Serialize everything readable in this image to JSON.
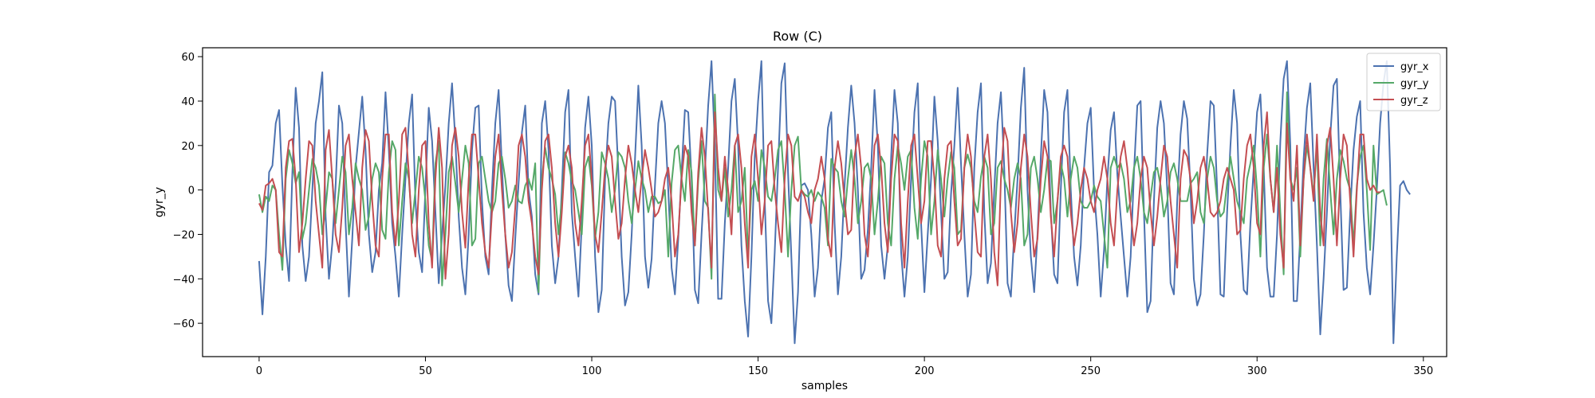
{
  "chart_data": {
    "type": "line",
    "title": "Row (C)",
    "xlabel": "samples",
    "ylabel": "gyr_y",
    "xlim": [
      -17,
      357
    ],
    "ylim": [
      -75,
      64
    ],
    "x_ticks": [
      0,
      50,
      100,
      150,
      200,
      250,
      300,
      350
    ],
    "y_ticks": [
      -60,
      -40,
      -20,
      0,
      20,
      40,
      60
    ],
    "grid": false,
    "legend_position": "top-right",
    "series": [
      {
        "name": "gyr_x",
        "color": "#4c72b0",
        "values": [
          -32,
          -56,
          -30,
          8,
          11,
          30,
          36,
          2,
          -25,
          -41,
          8,
          46,
          28,
          -25,
          -41,
          -30,
          0,
          30,
          40,
          53,
          -12,
          -40,
          -24,
          2,
          38,
          30,
          -15,
          -48,
          -22,
          10,
          26,
          42,
          18,
          -20,
          -37,
          -28,
          0,
          12,
          44,
          18,
          -15,
          -30,
          -48,
          -20,
          5,
          30,
          43,
          -5,
          -28,
          -37,
          1,
          37,
          22,
          -10,
          -42,
          -20,
          2,
          30,
          48,
          22,
          -12,
          -35,
          -47,
          -20,
          18,
          37,
          38,
          -5,
          -30,
          -38,
          0,
          30,
          45,
          10,
          -20,
          -43,
          -50,
          -22,
          3,
          26,
          38,
          0,
          -12,
          -38,
          -47,
          30,
          40,
          18,
          -25,
          -42,
          -30,
          0,
          35,
          45,
          -10,
          -30,
          -48,
          -15,
          28,
          42,
          20,
          -30,
          -55,
          -45,
          5,
          30,
          42,
          40,
          8,
          -30,
          -52,
          -46,
          -20,
          14,
          47,
          20,
          -30,
          -44,
          -31,
          2,
          30,
          40,
          30,
          0,
          -35,
          -47,
          -22,
          8,
          36,
          35,
          5,
          -45,
          -51,
          -20,
          8,
          38,
          58,
          20,
          -49,
          -49,
          -15,
          10,
          40,
          50,
          20,
          -25,
          -50,
          -66,
          -30,
          15,
          40,
          58,
          -5,
          -50,
          -60,
          -28,
          10,
          48,
          57,
          8,
          -30,
          -69,
          -46,
          2,
          3,
          0,
          -20,
          -48,
          -35,
          -5,
          5,
          28,
          35,
          -15,
          -47,
          -30,
          2,
          28,
          47,
          30,
          0,
          -40,
          -36,
          -18,
          10,
          45,
          20,
          -25,
          -40,
          -25,
          15,
          45,
          30,
          -28,
          -48,
          -30,
          5,
          35,
          48,
          -15,
          -46,
          -20,
          5,
          42,
          22,
          -10,
          -40,
          -37,
          -2,
          20,
          46,
          12,
          -20,
          -48,
          -38,
          10,
          35,
          48,
          -10,
          -42,
          -33,
          0,
          30,
          44,
          10,
          -42,
          -48,
          -20,
          5,
          37,
          55,
          0,
          -30,
          -46,
          -20,
          15,
          45,
          35,
          -10,
          -38,
          -42,
          0,
          35,
          45,
          0,
          -30,
          -43,
          -25,
          10,
          30,
          37,
          0,
          -20,
          -48,
          -27,
          5,
          27,
          35,
          7,
          -12,
          -30,
          -48,
          -30,
          8,
          38,
          40,
          -10,
          -55,
          -50,
          -5,
          28,
          40,
          30,
          0,
          -42,
          -47,
          -5,
          25,
          40,
          32,
          0,
          -40,
          -52,
          -47,
          -20,
          16,
          40,
          38,
          0,
          -47,
          -48,
          -10,
          20,
          45,
          30,
          -20,
          -45,
          -47,
          -15,
          10,
          35,
          43,
          10,
          -35,
          -48,
          -48,
          -20,
          22,
          50,
          58,
          20,
          -50,
          -50,
          -20,
          14,
          37,
          48,
          10,
          -25,
          -65,
          -40,
          -10,
          24,
          47,
          50,
          0,
          -45,
          -44,
          -10,
          18,
          33,
          40,
          -10,
          -35,
          -47,
          -25,
          0,
          30,
          48,
          58,
          10,
          -69,
          -30,
          2,
          4,
          0,
          -2
        ]
      },
      {
        "name": "gyr_y",
        "color": "#55a868",
        "values": [
          -2,
          -10,
          -3,
          -5,
          2,
          0,
          -20,
          -36,
          5,
          18,
          12,
          3,
          8,
          -22,
          -15,
          0,
          14,
          10,
          2,
          -20,
          -8,
          8,
          5,
          -15,
          0,
          15,
          8,
          -20,
          -8,
          12,
          5,
          0,
          -18,
          -12,
          5,
          12,
          8,
          -18,
          -22,
          8,
          22,
          18,
          -25,
          -5,
          12,
          5,
          -15,
          0,
          15,
          10,
          -5,
          -25,
          -32,
          12,
          22,
          -43,
          -20,
          8,
          15,
          3,
          -10,
          5,
          20,
          12,
          -25,
          -22,
          12,
          15,
          5,
          -5,
          -10,
          -5,
          12,
          15,
          5,
          -8,
          -5,
          2,
          -5,
          -6,
          2,
          5,
          0,
          12,
          -46,
          5,
          19,
          10,
          5,
          -2,
          -20,
          -5,
          17,
          12,
          4,
          0,
          -10,
          -20,
          10,
          15,
          2,
          -22,
          -10,
          17,
          12,
          5,
          -10,
          0,
          17,
          15,
          10,
          -5,
          -15,
          0,
          13,
          5,
          0,
          -10,
          -3,
          -3,
          -6,
          -5,
          0,
          -30,
          3,
          18,
          20,
          5,
          -5,
          18,
          8,
          -25,
          4,
          22,
          -5,
          -8,
          -40,
          43,
          0,
          -5,
          10,
          -12,
          0,
          20,
          -10,
          -5,
          10,
          -30,
          0,
          4,
          -5,
          18,
          10,
          -3,
          -5,
          5,
          18,
          22,
          0,
          -30,
          0,
          20,
          24,
          0,
          -2,
          -3,
          0,
          -5,
          -1,
          -3,
          -8,
          -25,
          14,
          10,
          8,
          -5,
          -12,
          5,
          18,
          5,
          -15,
          -5,
          10,
          12,
          5,
          -20,
          -5,
          15,
          12,
          -15,
          -25,
          5,
          20,
          12,
          0,
          15,
          18,
          -8,
          -22,
          5,
          22,
          15,
          -20,
          -5,
          18,
          5,
          -12,
          5,
          17,
          10,
          -20,
          -18,
          10,
          16,
          10,
          -5,
          -10,
          6,
          15,
          10,
          -20,
          -15,
          10,
          13,
          5,
          0,
          -8,
          5,
          12,
          5,
          -25,
          -20,
          10,
          15,
          5,
          -10,
          0,
          14,
          13,
          -15,
          -5,
          12,
          5,
          -12,
          5,
          15,
          10,
          -5,
          -8,
          -8,
          -5,
          2,
          -3,
          -5,
          -20,
          -35,
          10,
          15,
          10,
          12,
          5,
          -10,
          -5,
          10,
          15,
          5,
          -10,
          -15,
          -3,
          8,
          10,
          2,
          -12,
          -5,
          8,
          12,
          5,
          -5,
          -5,
          -5,
          3,
          5,
          8,
          -10,
          -15,
          5,
          15,
          10,
          -5,
          -12,
          -10,
          3,
          15,
          5,
          -5,
          -10,
          -15,
          5,
          12,
          20,
          0,
          -30,
          10,
          25,
          5,
          -10,
          20,
          -10,
          -38,
          44,
          5,
          0,
          10,
          -30,
          5,
          20,
          10,
          -2,
          20,
          -25,
          5,
          23,
          0,
          -20,
          5,
          18,
          13,
          5,
          0,
          -25,
          2,
          15,
          20,
          0,
          -27,
          20,
          -2,
          -1,
          0,
          -7
        ]
      },
      {
        "name": "gyr_z",
        "color": "#c44e52",
        "values": [
          -6,
          -9,
          2,
          3,
          5,
          0,
          -28,
          -30,
          10,
          22,
          23,
          5,
          -28,
          -15,
          5,
          22,
          20,
          -5,
          -20,
          -35,
          18,
          27,
          5,
          -20,
          -28,
          -8,
          20,
          25,
          5,
          -10,
          -25,
          10,
          27,
          22,
          -5,
          -25,
          -30,
          5,
          25,
          25,
          -10,
          -25,
          -5,
          25,
          28,
          8,
          -20,
          -30,
          0,
          20,
          22,
          -15,
          -35,
          5,
          28,
          10,
          -40,
          -20,
          20,
          28,
          15,
          -10,
          -26,
          5,
          25,
          25,
          5,
          -15,
          -28,
          -35,
          -10,
          15,
          25,
          0,
          -20,
          -35,
          -28,
          -8,
          20,
          25,
          15,
          -5,
          -15,
          -30,
          -38,
          0,
          22,
          25,
          10,
          -15,
          -30,
          -10,
          15,
          20,
          10,
          -15,
          -25,
          -5,
          20,
          25,
          5,
          -20,
          -28,
          -10,
          10,
          20,
          15,
          -5,
          -22,
          -15,
          5,
          20,
          12,
          0,
          -10,
          5,
          18,
          10,
          0,
          -12,
          -10,
          -5,
          5,
          10,
          -5,
          -30,
          -20,
          5,
          20,
          15,
          -10,
          -25,
          8,
          28,
          15,
          -10,
          -35,
          35,
          10,
          -5,
          15,
          0,
          -20,
          20,
          25,
          10,
          -15,
          -35,
          15,
          25,
          5,
          -20,
          -5,
          20,
          22,
          0,
          -15,
          -28,
          5,
          25,
          20,
          -3,
          -5,
          0,
          -3,
          -10,
          -15,
          0,
          5,
          15,
          5,
          -22,
          -30,
          10,
          22,
          12,
          -5,
          -20,
          -18,
          15,
          25,
          10,
          -20,
          -30,
          -5,
          20,
          25,
          10,
          -15,
          -28,
          5,
          25,
          22,
          -15,
          -35,
          -5,
          20,
          25,
          5,
          -15,
          -5,
          22,
          22,
          5,
          -25,
          -30,
          5,
          20,
          22,
          -5,
          -25,
          -22,
          10,
          25,
          15,
          -10,
          -28,
          -30,
          15,
          25,
          5,
          -28,
          -43,
          5,
          28,
          22,
          -10,
          -28,
          -15,
          10,
          25,
          15,
          -10,
          -30,
          -22,
          5,
          22,
          15,
          -12,
          -30,
          -5,
          15,
          20,
          15,
          -10,
          -25,
          -15,
          0,
          10,
          5,
          -5,
          -10,
          0,
          5,
          15,
          5,
          -15,
          -25,
          0,
          15,
          22,
          10,
          -10,
          -25,
          -15,
          5,
          15,
          10,
          -10,
          -25,
          -12,
          5,
          20,
          15,
          -5,
          -20,
          -35,
          5,
          18,
          15,
          5,
          -15,
          -5,
          10,
          15,
          5,
          -10,
          -12,
          -10,
          -5,
          5,
          10,
          5,
          0,
          -20,
          -18,
          5,
          20,
          25,
          10,
          -15,
          -20,
          20,
          35,
          5,
          -10,
          10,
          -20,
          -35,
          30,
          5,
          -5,
          20,
          -25,
          5,
          25,
          10,
          -5,
          25,
          -10,
          -25,
          20,
          28,
          5,
          -25,
          5,
          25,
          20,
          -5,
          -30,
          0,
          25,
          25,
          5,
          0,
          2,
          -1,
          -1
        ]
      }
    ]
  }
}
